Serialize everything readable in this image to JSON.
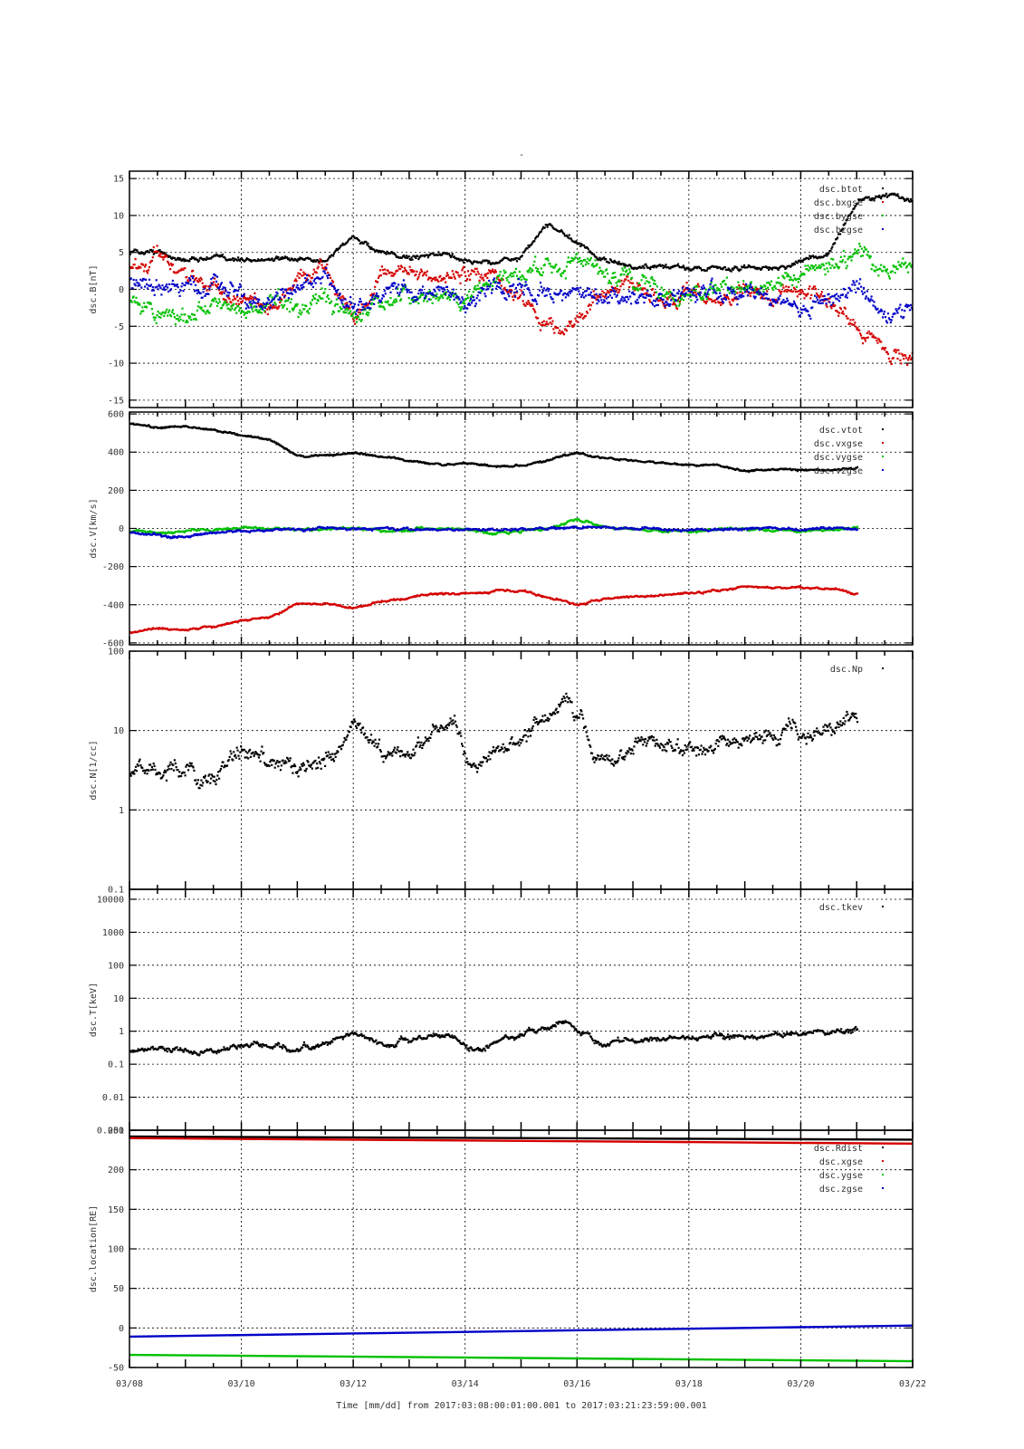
{
  "title": "-",
  "x_axis": {
    "label": "Time [mm/dd]  from 2017:03:08:00:01:00.001  to  2017:03:21:23:59:00.001",
    "range_days": [
      0,
      14
    ],
    "ticks": [
      {
        "pos": 0,
        "label": "03/08"
      },
      {
        "pos": 2,
        "label": "03/10"
      },
      {
        "pos": 4,
        "label": "03/12"
      },
      {
        "pos": 6,
        "label": "03/14"
      },
      {
        "pos": 8,
        "label": "03/16"
      },
      {
        "pos": 10,
        "label": "03/18"
      },
      {
        "pos": 12,
        "label": "03/20"
      },
      {
        "pos": 14,
        "label": "03/22"
      }
    ]
  },
  "colors": {
    "black": "#000000",
    "red": "#d40000",
    "green": "#00c000",
    "blue": "#0000c8"
  },
  "chart_data": [
    {
      "type": "scatter",
      "ylabel": "dsc.B[nT]",
      "scale": "linear",
      "ylim": [
        -16,
        16
      ],
      "yticks": [
        {
          "v": 15,
          "label": "15"
        },
        {
          "v": 10,
          "label": "10"
        },
        {
          "v": 5,
          "label": "5"
        },
        {
          "v": 0,
          "label": "0"
        },
        {
          "v": -5,
          "label": "-5"
        },
        {
          "v": -10,
          "label": "-10"
        },
        {
          "v": -15,
          "label": "-15"
        }
      ],
      "grid": true,
      "legend_position": "top-right",
      "series": [
        {
          "name": "dsc.btot",
          "color": "black",
          "x": [
            0,
            0.5,
            1,
            1.5,
            2,
            2.5,
            3,
            3.5,
            4,
            4.5,
            5,
            5.5,
            6,
            6.5,
            7,
            7.5,
            8,
            8.5,
            9,
            9.5,
            10,
            10.5,
            11,
            11.5,
            12,
            12.5,
            13,
            13.5,
            14
          ],
          "y": [
            5,
            5,
            4,
            4.5,
            4,
            4.5,
            4,
            4,
            7,
            5,
            4.5,
            5,
            4,
            3.5,
            4.5,
            9,
            6,
            4,
            3,
            3,
            3,
            3,
            3,
            3,
            4,
            5,
            12,
            13,
            12
          ],
          "spread": 0.5
        },
        {
          "name": "dsc.bxgse",
          "color": "red",
          "x": [
            0,
            0.5,
            1,
            1.5,
            2,
            2.5,
            3,
            3.5,
            4,
            4.5,
            5,
            5.5,
            6,
            6.5,
            7,
            7.5,
            8,
            8.5,
            9,
            9.5,
            10,
            10.5,
            11,
            11.5,
            12,
            12.5,
            13,
            13.5,
            14
          ],
          "y": [
            3,
            4,
            2,
            0,
            -1,
            -2,
            1,
            3,
            -4,
            2,
            3,
            1,
            2,
            2,
            -1,
            -5,
            -4,
            0,
            1,
            -2,
            -1,
            -1,
            0,
            -1,
            0,
            -1,
            -5,
            -8,
            -9
          ],
          "spread": 1.5
        },
        {
          "name": "dsc.bygse",
          "color": "green",
          "x": [
            0,
            0.5,
            1,
            1.5,
            2,
            2.5,
            3,
            3.5,
            4,
            4.5,
            5,
            5.5,
            6,
            6.5,
            7,
            7.5,
            8,
            8.5,
            9,
            9.5,
            10,
            10.5,
            11,
            11.5,
            12,
            12.5,
            13,
            13.5,
            14
          ],
          "y": [
            -2,
            -3,
            -3,
            -2,
            -3,
            -1,
            -2,
            -2,
            -4,
            -1,
            -1,
            0,
            -1,
            1,
            2,
            4,
            3,
            2,
            1,
            0,
            -1,
            0,
            1,
            1,
            2,
            3,
            5,
            3,
            4
          ],
          "spread": 1.8
        },
        {
          "name": "dsc.bzgse",
          "color": "blue",
          "x": [
            0,
            0.5,
            1,
            1.5,
            2,
            2.5,
            3,
            3.5,
            4,
            4.5,
            5,
            5.5,
            6,
            6.5,
            7,
            7.5,
            8,
            8.5,
            9,
            9.5,
            10,
            10.5,
            11,
            11.5,
            12,
            12.5,
            13,
            13.5,
            14
          ],
          "y": [
            1,
            0,
            0,
            1,
            -1,
            -2,
            0,
            1,
            -2,
            0,
            -1,
            0,
            -1,
            1,
            0,
            -1,
            0,
            -1,
            0,
            -1,
            0,
            -1,
            0,
            -1,
            -2,
            -1,
            0,
            -3,
            -2
          ],
          "spread": 1.8
        }
      ]
    },
    {
      "type": "scatter",
      "ylabel": "dsc.V[km/s]",
      "scale": "linear",
      "ylim": [
        -610,
        610
      ],
      "yticks": [
        {
          "v": 600,
          "label": "600"
        },
        {
          "v": 400,
          "label": "400"
        },
        {
          "v": 200,
          "label": "200"
        },
        {
          "v": 0,
          "label": "0"
        },
        {
          "v": -200,
          "label": "-200"
        },
        {
          "v": -400,
          "label": "-400"
        },
        {
          "v": -600,
          "label": "-600"
        }
      ],
      "grid": true,
      "legend_position": "top-right",
      "series": [
        {
          "name": "dsc.vtot",
          "color": "black",
          "x": [
            0,
            0.5,
            1,
            1.5,
            2,
            2.5,
            3,
            3.5,
            4,
            4.5,
            5,
            5.5,
            6,
            6.5,
            7,
            7.5,
            8,
            8.5,
            9,
            9.5,
            10,
            10.5,
            11,
            11.5,
            12,
            12.5,
            13
          ],
          "y": [
            550,
            530,
            540,
            520,
            490,
            470,
            380,
            390,
            400,
            380,
            360,
            340,
            345,
            330,
            330,
            360,
            400,
            370,
            360,
            350,
            340,
            330,
            305,
            315,
            310,
            310,
            320
          ],
          "spread": 8
        },
        {
          "name": "dsc.vxgse",
          "color": "red",
          "x": [
            0,
            0.5,
            1,
            1.5,
            2,
            2.5,
            3,
            3.5,
            4,
            4.5,
            5,
            5.5,
            6,
            6.5,
            7,
            7.5,
            8,
            8.5,
            9,
            9.5,
            10,
            10.5,
            11,
            11.5,
            12,
            12.5,
            13
          ],
          "y": [
            -540,
            -520,
            -530,
            -510,
            -480,
            -460,
            -390,
            -390,
            -410,
            -380,
            -355,
            -335,
            -340,
            -325,
            -325,
            -360,
            -395,
            -365,
            -355,
            -345,
            -335,
            -325,
            -300,
            -310,
            -305,
            -310,
            -340
          ],
          "spread": 8
        },
        {
          "name": "dsc.vygse",
          "color": "green",
          "x": [
            0,
            0.5,
            1,
            1.5,
            2,
            2.5,
            3,
            3.5,
            4,
            4.5,
            5,
            5.5,
            6,
            6.5,
            7,
            7.5,
            8,
            8.5,
            9,
            9.5,
            10,
            10.5,
            11,
            11.5,
            12,
            12.5,
            13
          ],
          "y": [
            -10,
            -20,
            -5,
            0,
            5,
            0,
            -5,
            0,
            5,
            -10,
            0,
            5,
            0,
            -30,
            -10,
            0,
            50,
            10,
            0,
            -5,
            -10,
            -5,
            0,
            -5,
            -10,
            0,
            5
          ],
          "spread": 10
        },
        {
          "name": "dsc.vzgse",
          "color": "blue",
          "x": [
            0,
            0.5,
            1,
            1.5,
            2,
            2.5,
            3,
            3.5,
            4,
            4.5,
            5,
            5.5,
            6,
            6.5,
            7,
            7.5,
            8,
            8.5,
            9,
            9.5,
            10,
            10.5,
            11,
            11.5,
            12,
            12.5,
            13
          ],
          "y": [
            -20,
            -30,
            -40,
            -20,
            -10,
            -5,
            0,
            5,
            0,
            5,
            0,
            -5,
            0,
            0,
            -5,
            5,
            10,
            5,
            0,
            0,
            -5,
            0,
            0,
            5,
            0,
            5,
            0
          ],
          "spread": 10
        }
      ]
    },
    {
      "type": "scatter",
      "ylabel": "dsc.N[1/cc]",
      "scale": "log",
      "ylim": [
        0.1,
        100
      ],
      "yticks": [
        {
          "v": 100,
          "label": "100"
        },
        {
          "v": 10,
          "label": "10"
        },
        {
          "v": 1,
          "label": "1"
        },
        {
          "v": 0.1,
          "label": "0.1"
        }
      ],
      "grid": true,
      "legend_position": "top-right",
      "series": [
        {
          "name": "dsc.Np",
          "color": "black",
          "x": [
            0,
            0.5,
            1,
            1.2,
            1.5,
            2,
            2.5,
            3,
            3.5,
            3.8,
            4,
            4.5,
            5,
            5.5,
            5.8,
            6,
            6.2,
            6.5,
            7,
            7.5,
            7.8,
            8,
            8.3,
            8.5,
            9,
            9.5,
            10,
            10.5,
            11,
            11.5,
            12,
            12.5,
            13
          ],
          "y": [
            3,
            3.2,
            3.5,
            2.2,
            3,
            5.5,
            4.5,
            3.5,
            5,
            6,
            11,
            5,
            4,
            11,
            12,
            4,
            3,
            5,
            9,
            15,
            25,
            14,
            5,
            4,
            7,
            6.5,
            7,
            6.8,
            7.5,
            8.5,
            9,
            11,
            13
          ],
          "spread": 0.15
        }
      ]
    },
    {
      "type": "scatter",
      "ylabel": "dsc.T[keV]",
      "scale": "log",
      "ylim": [
        0.001,
        20000
      ],
      "yticks": [
        {
          "v": 10000,
          "label": "10000"
        },
        {
          "v": 1000,
          "label": "1000"
        },
        {
          "v": 100,
          "label": "100"
        },
        {
          "v": 10,
          "label": "10"
        },
        {
          "v": 1,
          "label": "1"
        },
        {
          "v": 0.1,
          "label": "0.1"
        },
        {
          "v": 0.01,
          "label": "0.01"
        },
        {
          "v": 0.001,
          "label": "0.001"
        }
      ],
      "grid": true,
      "legend_position": "top-right",
      "series": [
        {
          "name": "dsc.tkev",
          "color": "black",
          "x": [
            0,
            0.5,
            1,
            1.2,
            1.5,
            2,
            2.5,
            3,
            3.5,
            4,
            4.5,
            5,
            5.5,
            5.8,
            6,
            6.3,
            6.5,
            7,
            7.5,
            7.8,
            8,
            8.3,
            8.5,
            9,
            9.5,
            10,
            10.5,
            11,
            11.5,
            12,
            12.5,
            13
          ],
          "y": [
            0.25,
            0.28,
            0.3,
            0.2,
            0.25,
            0.4,
            0.35,
            0.3,
            0.45,
            0.9,
            0.4,
            0.5,
            0.9,
            0.8,
            0.3,
            0.25,
            0.5,
            0.8,
            1.5,
            2,
            1.2,
            0.5,
            0.45,
            0.6,
            0.55,
            0.65,
            0.7,
            0.7,
            0.75,
            0.85,
            0.95,
            1.2
          ],
          "spread": 0.12
        }
      ]
    },
    {
      "type": "line",
      "ylabel": "dsc.location[RE]",
      "scale": "linear",
      "ylim": [
        -50,
        250
      ],
      "yticks": [
        {
          "v": 250,
          "label": "250"
        },
        {
          "v": 200,
          "label": "200"
        },
        {
          "v": 150,
          "label": "150"
        },
        {
          "v": 100,
          "label": "100"
        },
        {
          "v": 50,
          "label": "50"
        },
        {
          "v": 0,
          "label": "0"
        },
        {
          "v": -50,
          "label": "-50"
        }
      ],
      "grid": true,
      "legend_position": "top-right",
      "series": [
        {
          "name": "dsc.Rdist",
          "color": "black",
          "x": [
            0,
            14
          ],
          "y": [
            242,
            238
          ]
        },
        {
          "name": "dsc.xgse",
          "color": "red",
          "x": [
            0,
            14
          ],
          "y": [
            240,
            233
          ]
        },
        {
          "name": "dsc.ygse",
          "color": "green",
          "x": [
            0,
            14
          ],
          "y": [
            -34,
            -42
          ]
        },
        {
          "name": "dsc.zgse",
          "color": "blue",
          "x": [
            0,
            14
          ],
          "y": [
            -11,
            3
          ]
        }
      ]
    }
  ]
}
